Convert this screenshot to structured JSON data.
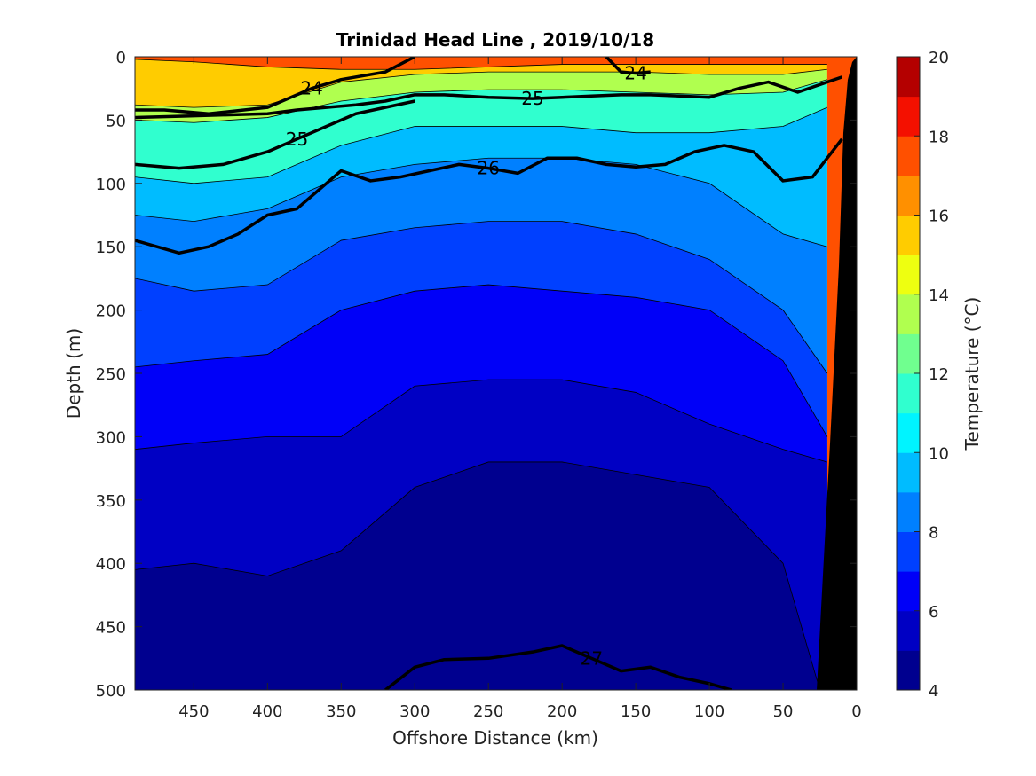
{
  "chart_data": {
    "type": "heatmap",
    "title": "Trinidad Head Line , 2019/10/18",
    "xlabel": "Offshore Distance (km)",
    "ylabel": "Depth (m)",
    "colorbar_label": "Temperature (°C)",
    "xlim": [
      490,
      0
    ],
    "ylim": [
      0,
      500
    ],
    "x_ticks": [
      450,
      400,
      350,
      300,
      250,
      200,
      150,
      100,
      50,
      0
    ],
    "y_ticks": [
      0,
      50,
      100,
      150,
      200,
      250,
      300,
      350,
      400,
      450,
      500
    ],
    "colorbar_ticks": [
      4,
      6,
      8,
      10,
      12,
      14,
      16,
      18,
      20
    ],
    "colorbar_range": [
      4,
      20
    ],
    "colormap": [
      "#00008f",
      "#0000c4",
      "#0000f8",
      "#0040ff",
      "#0080ff",
      "#00bcff",
      "#00f4ff",
      "#30ffcf",
      "#70ff8f",
      "#b0ff4f",
      "#eeff10",
      "#ffcc00",
      "#ff9000",
      "#ff5000",
      "#f41000",
      "#b40000"
    ],
    "series": [
      {
        "name": "",
        "values": []
      }
    ],
    "temperature_depth_profiles": {
      "x_km": [
        490,
        450,
        400,
        350,
        300,
        250,
        200,
        150,
        100,
        50,
        20
      ],
      "isotherm_depths": [
        {
          "temp": 16,
          "depths": [
            2,
            4,
            8,
            10,
            10,
            8,
            6,
            6,
            6,
            6,
            6
          ]
        },
        {
          "temp": 14,
          "depths": [
            38,
            40,
            38,
            20,
            14,
            12,
            12,
            12,
            14,
            14,
            10
          ]
        },
        {
          "temp": 12,
          "depths": [
            50,
            52,
            48,
            35,
            28,
            26,
            26,
            28,
            30,
            28,
            18
          ]
        },
        {
          "temp": 10,
          "depths": [
            95,
            100,
            95,
            70,
            55,
            55,
            55,
            60,
            60,
            55,
            40
          ]
        },
        {
          "temp": 9,
          "depths": [
            125,
            130,
            120,
            95,
            85,
            80,
            80,
            85,
            100,
            140,
            150
          ]
        },
        {
          "temp": 8,
          "depths": [
            175,
            185,
            180,
            145,
            135,
            130,
            130,
            140,
            160,
            200,
            250
          ]
        },
        {
          "temp": 7,
          "depths": [
            245,
            240,
            235,
            200,
            185,
            180,
            185,
            190,
            200,
            240,
            300
          ]
        },
        {
          "temp": 6,
          "depths": [
            310,
            305,
            300,
            300,
            260,
            255,
            255,
            265,
            290,
            310,
            320
          ]
        },
        {
          "temp": 5,
          "depths": [
            405,
            400,
            410,
            390,
            340,
            320,
            320,
            330,
            340,
            400,
            520
          ]
        }
      ]
    },
    "density_contours": [
      {
        "label": "24",
        "x": [
          490,
          470,
          440,
          400,
          370,
          350,
          320,
          300
        ],
        "depths": [
          42,
          42,
          45,
          40,
          25,
          18,
          12,
          0
        ]
      },
      {
        "label": "24",
        "x": [
          170,
          160,
          150,
          140
        ],
        "depths": [
          0,
          12,
          13,
          12
        ]
      },
      {
        "label": "25",
        "x": [
          490,
          460,
          430,
          400,
          380,
          360,
          340,
          320,
          300,
          280,
          250,
          220,
          200,
          180,
          160,
          140,
          120,
          100,
          80,
          60,
          40,
          20,
          10
        ],
        "depths": [
          48,
          47,
          46,
          45,
          42,
          40,
          38,
          35,
          30,
          30,
          32,
          33,
          32,
          31,
          30,
          30,
          31,
          32,
          25,
          20,
          28,
          20,
          16
        ]
      },
      {
        "label": "25",
        "x": [
          490,
          460,
          430,
          400,
          380,
          360,
          340,
          320,
          300
        ],
        "depths": [
          85,
          88,
          85,
          75,
          65,
          55,
          45,
          40,
          35
        ]
      },
      {
        "label": "26",
        "x": [
          490,
          460,
          440,
          420,
          400,
          380,
          360,
          350,
          330,
          310,
          290,
          270,
          250,
          230,
          210,
          190,
          170,
          150,
          130,
          110,
          90,
          70,
          50,
          30,
          10
        ],
        "depths": [
          145,
          155,
          150,
          140,
          125,
          120,
          100,
          90,
          98,
          95,
          90,
          85,
          88,
          92,
          80,
          80,
          85,
          87,
          85,
          75,
          70,
          75,
          98,
          95,
          65
        ]
      },
      {
        "label": "27",
        "x": [
          320,
          300,
          280,
          250,
          220,
          200,
          180,
          160,
          140,
          120,
          100,
          85
        ],
        "depths": [
          500,
          482,
          476,
          475,
          470,
          465,
          475,
          485,
          482,
          490,
          495,
          500
        ]
      }
    ]
  }
}
